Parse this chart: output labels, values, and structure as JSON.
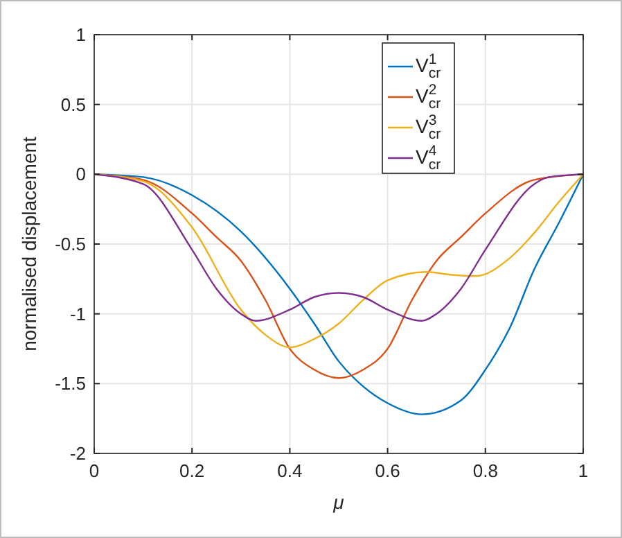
{
  "chart_data": {
    "type": "line",
    "xlabel": "μ",
    "ylabel": "normalised displacement",
    "xlim": [
      0,
      1
    ],
    "ylim": [
      -2,
      1
    ],
    "xticks": [
      0,
      0.2,
      0.4,
      0.6,
      0.8,
      1
    ],
    "yticks": [
      -2,
      -1.5,
      -1,
      -0.5,
      0,
      0.5,
      1
    ],
    "grid": true,
    "legend": "top right",
    "line_style": "solid",
    "series": [
      {
        "name": "V$^{1}$$_{cr}$",
        "color": "#0072bd",
        "x": [
          0,
          0.1,
          0.2,
          0.3,
          0.4,
          0.45,
          0.5,
          0.55,
          0.6,
          0.67,
          0.75,
          0.8,
          0.85,
          0.9,
          0.95,
          1
        ],
        "values": [
          0,
          -0.02,
          -0.15,
          -0.41,
          -0.82,
          -1.07,
          -1.34,
          -1.52,
          -1.64,
          -1.72,
          -1.62,
          -1.4,
          -1.1,
          -0.68,
          -0.35,
          0
        ]
      },
      {
        "name": "V$^{2}$$_{cr}$",
        "color": "#d95319",
        "x": [
          0,
          0.1,
          0.2,
          0.25,
          0.3,
          0.35,
          0.4,
          0.45,
          0.5,
          0.55,
          0.6,
          0.65,
          0.7,
          0.75,
          0.8,
          0.9,
          1
        ],
        "values": [
          0,
          -0.04,
          -0.28,
          -0.45,
          -0.62,
          -0.9,
          -1.25,
          -1.4,
          -1.46,
          -1.4,
          -1.25,
          -0.9,
          -0.62,
          -0.45,
          -0.28,
          -0.04,
          0
        ]
      },
      {
        "name": "V$^{3}$$_{cr}$",
        "color": "#edb120",
        "x": [
          0,
          0.1,
          0.2,
          0.3,
          0.35,
          0.4,
          0.45,
          0.5,
          0.55,
          0.6,
          0.68,
          0.73,
          0.78,
          0.85,
          0.9,
          0.95,
          1
        ],
        "values": [
          0,
          -0.05,
          -0.38,
          -0.97,
          -1.15,
          -1.24,
          -1.18,
          -1.07,
          -0.9,
          -0.76,
          -0.7,
          -0.72,
          -0.73,
          -0.6,
          -0.42,
          -0.2,
          0
        ]
      },
      {
        "name": "V$^{4}$$_{cr}$",
        "color": "#7e2f8e",
        "x": [
          0,
          0.1,
          0.2,
          0.25,
          0.3,
          0.33,
          0.4,
          0.45,
          0.5,
          0.55,
          0.6,
          0.67,
          0.7,
          0.75,
          0.8,
          0.9,
          0.93,
          1
        ],
        "values": [
          0,
          -0.07,
          -0.54,
          -0.82,
          -1.0,
          -1.05,
          -0.97,
          -0.88,
          -0.85,
          -0.88,
          -0.97,
          -1.05,
          -1.0,
          -0.82,
          -0.54,
          -0.07,
          -0.02,
          0
        ]
      }
    ]
  }
}
